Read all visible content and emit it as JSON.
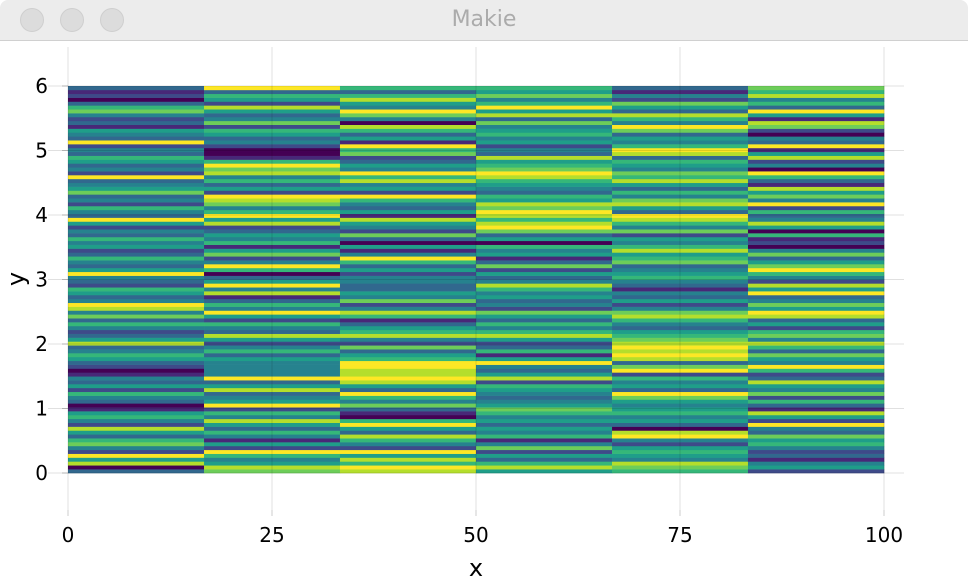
{
  "window": {
    "title": "Makie"
  },
  "chart_data": {
    "type": "heatmap",
    "xlabel": "x",
    "ylabel": "y",
    "xlim": [
      0,
      100
    ],
    "ylim": [
      0,
      6
    ],
    "xticks": [
      "0",
      "25",
      "50",
      "75",
      "100"
    ],
    "yticks": [
      "0",
      "1",
      "2",
      "3",
      "4",
      "5",
      "6"
    ],
    "grid": true,
    "colormap": "viridis",
    "colorrange": [
      0,
      9
    ],
    "x_edges": [
      0,
      16.67,
      33.33,
      50,
      66.67,
      83.33,
      100
    ],
    "rows": 100,
    "columns": [
      [
        3,
        0,
        8,
        5,
        9,
        2,
        4,
        7,
        6,
        3,
        5,
        8,
        2,
        4,
        6,
        5,
        1,
        0,
        3,
        4,
        6,
        2,
        5,
        3,
        4,
        1,
        0,
        2,
        3,
        5,
        6,
        4,
        3,
        8,
        5,
        3,
        2,
        4,
        6,
        3,
        7,
        4,
        8,
        9,
        4,
        3,
        5,
        6,
        2,
        3,
        4,
        9,
        5,
        3,
        4,
        6,
        3,
        2,
        5,
        4,
        6,
        3,
        4,
        2,
        5,
        9,
        3,
        4,
        6,
        2,
        4,
        3,
        7,
        5,
        4,
        3,
        9,
        2,
        4,
        3,
        5,
        6,
        3,
        4,
        2,
        9,
        3,
        4,
        5,
        1,
        3,
        2,
        4,
        7,
        6,
        3,
        0,
        2,
        1,
        3
      ],
      [
        7,
        8,
        5,
        4,
        6,
        9,
        2,
        5,
        1,
        4,
        6,
        3,
        5,
        8,
        4,
        6,
        2,
        9,
        5,
        4,
        3,
        8,
        5,
        3,
        9,
        4,
        4,
        4,
        4,
        5,
        3,
        6,
        4,
        2,
        5,
        8,
        3,
        4,
        6,
        2,
        5,
        9,
        4,
        6,
        3,
        1,
        8,
        4,
        9,
        5,
        3,
        0,
        6,
        9,
        4,
        2,
        7,
        5,
        1,
        6,
        4,
        5,
        3,
        2,
        8,
        5,
        9,
        6,
        4,
        7,
        8,
        9,
        2,
        5,
        3,
        6,
        4,
        8,
        7,
        9,
        6,
        1,
        0,
        0,
        2,
        4,
        3,
        5,
        6,
        2,
        7,
        4,
        3,
        5,
        8,
        2,
        5,
        6,
        3,
        9
      ],
      [
        8,
        9,
        6,
        8,
        5,
        9,
        2,
        4,
        6,
        8,
        3,
        5,
        9,
        6,
        0,
        1,
        3,
        7,
        4,
        6,
        9,
        3,
        5,
        8,
        9,
        8,
        8,
        9,
        9,
        6,
        5,
        3,
        7,
        2,
        4,
        8,
        6,
        5,
        3,
        1,
        6,
        8,
        4,
        2,
        7,
        4,
        5,
        3,
        3,
        4,
        4,
        2,
        5,
        3,
        6,
        9,
        4,
        1,
        5,
        0,
        3,
        7,
        2,
        4,
        5,
        8,
        1,
        5,
        3,
        4,
        6,
        9,
        2,
        5,
        4,
        8,
        6,
        9,
        4,
        5,
        3,
        2,
        7,
        6,
        9,
        1,
        5,
        3,
        6,
        8,
        0,
        4,
        7,
        9,
        4,
        5,
        8,
        6,
        3,
        6
      ],
      [
        5,
        8,
        6,
        3,
        5,
        2,
        7,
        4,
        1,
        6,
        4,
        5,
        3,
        5,
        4,
        6,
        7,
        5,
        4,
        3,
        4,
        5,
        6,
        2,
        8,
        5,
        3,
        4,
        9,
        5,
        1,
        6,
        3,
        2,
        5,
        8,
        6,
        4,
        6,
        3,
        5,
        7,
        2,
        4,
        3,
        5,
        4,
        6,
        8,
        4,
        3,
        5,
        2,
        7,
        3,
        1,
        5,
        4,
        6,
        0,
        5,
        3,
        7,
        9,
        8,
        6,
        8,
        9,
        7,
        8,
        5,
        6,
        3,
        4,
        5,
        6,
        8,
        9,
        7,
        6,
        5,
        8,
        3,
        4,
        2,
        5,
        4,
        6,
        5,
        4,
        7,
        3,
        8,
        5,
        9,
        6,
        4,
        7,
        5,
        6
      ],
      [
        6,
        7,
        8,
        4,
        5,
        6,
        5,
        2,
        4,
        9,
        8,
        0,
        3,
        5,
        4,
        6,
        5,
        4,
        5,
        7,
        9,
        3,
        5,
        4,
        6,
        2,
        9,
        7,
        3,
        8,
        9,
        8,
        9,
        8,
        7,
        6,
        5,
        3,
        4,
        6,
        8,
        7,
        4,
        2,
        5,
        3,
        4,
        1,
        3,
        4,
        6,
        5,
        4,
        3,
        7,
        6,
        5,
        8,
        6,
        4,
        5,
        2,
        7,
        4,
        6,
        8,
        9,
        3,
        5,
        8,
        7,
        4,
        6,
        3,
        5,
        8,
        6,
        7,
        4,
        5,
        6,
        3,
        8,
        9,
        6,
        4,
        5,
        3,
        7,
        9,
        4,
        6,
        8,
        3,
        5,
        7,
        2,
        4,
        1,
        3
      ],
      [
        2,
        5,
        4,
        1,
        3,
        2,
        4,
        6,
        5,
        7,
        3,
        4,
        9,
        2,
        5,
        8,
        1,
        3,
        6,
        2,
        7,
        4,
        5,
        8,
        3,
        2,
        6,
        9,
        4,
        5,
        7,
        3,
        6,
        8,
        4,
        7,
        6,
        2,
        5,
        3,
        8,
        9,
        5,
        7,
        4,
        3,
        9,
        5,
        8,
        2,
        4,
        6,
        9,
        7,
        5,
        3,
        7,
        4,
        0,
        2,
        1,
        6,
        0,
        5,
        8,
        4,
        3,
        6,
        2,
        9,
        4,
        7,
        5,
        8,
        1,
        3,
        6,
        9,
        0,
        4,
        2,
        8,
        5,
        1,
        9,
        3,
        4,
        0,
        2,
        7,
        8,
        1,
        5,
        9,
        3,
        6,
        4,
        8,
        6,
        7
      ]
    ]
  }
}
